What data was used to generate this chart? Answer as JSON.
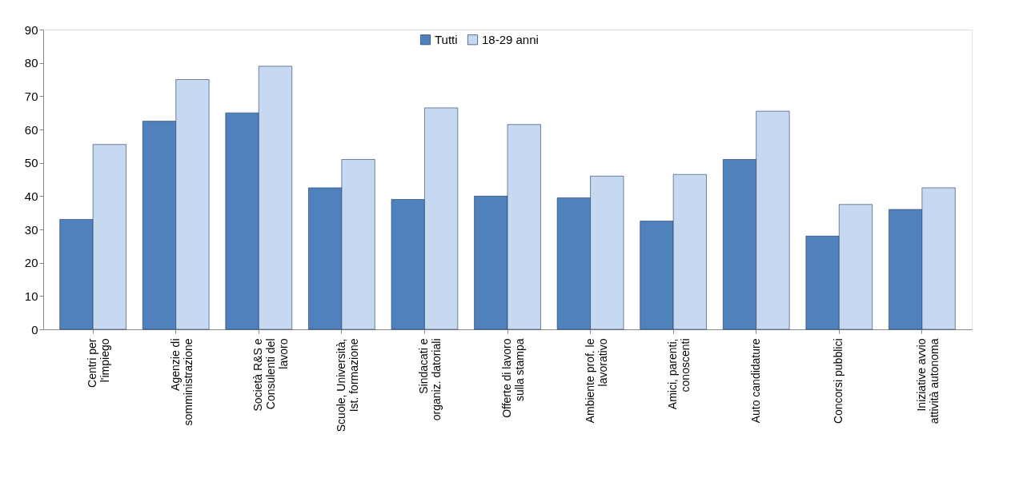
{
  "chart_data": {
    "type": "bar",
    "categories": [
      "Centri per\nl'impiego",
      "Agenzie di\nsomministrazione",
      "Società R&S e\nConsulenti del\nlavoro",
      "Scuole, Università,\nIst. formazione",
      "Sindacati e\norganiz. datoriali",
      "Offerte di lavoro\nsulla stampa",
      "Ambiente prof. le\nlavorativo",
      "Amici, parenti,\nconoscenti",
      "Auto candidature",
      "Concorsi pubblici",
      "Iniziative avvio\nattività autonoma"
    ],
    "series": [
      {
        "name": "Tutti",
        "color": "#4f81bd",
        "values": [
          33,
          62.5,
          65,
          42.5,
          39,
          40,
          39.5,
          32.5,
          51,
          28,
          36
        ]
      },
      {
        "name": "18-29 anni",
        "color": "#c6d9f1",
        "values": [
          55.5,
          75,
          79,
          51,
          66.5,
          61.5,
          46,
          46.5,
          65.5,
          37.5,
          42.5
        ]
      }
    ],
    "ylim": [
      0,
      90
    ],
    "yticks": [
      0,
      10,
      20,
      30,
      40,
      50,
      60,
      70,
      80,
      90
    ],
    "grid": false,
    "legend": "top"
  }
}
